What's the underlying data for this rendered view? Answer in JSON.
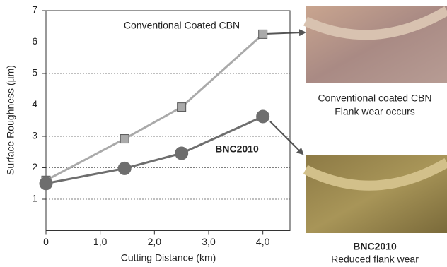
{
  "chart_data": {
    "type": "line",
    "x_label": "Cutting Distance (km)",
    "y_label": "Surface Roughness (µm)",
    "x": [
      0,
      1.45,
      2.5,
      4.0
    ],
    "series": [
      {
        "name": "Conventional Coated CBN",
        "color": "#aaaaaa",
        "marker": "square",
        "values": [
          1.6,
          2.92,
          3.93,
          6.25
        ]
      },
      {
        "name": "BNC2010",
        "color": "#6e6e6e",
        "marker": "circle",
        "values": [
          1.5,
          1.98,
          2.46,
          3.63
        ]
      }
    ],
    "xlim": [
      0,
      4.5
    ],
    "ylim": [
      0,
      7
    ],
    "xticks": [
      0,
      {
        "value": 1,
        "label": "1,0"
      },
      {
        "value": 2,
        "label": "2,0"
      },
      {
        "value": 3,
        "label": "3,0"
      },
      {
        "value": 4,
        "label": "4,0"
      }
    ],
    "yticks": [
      1,
      2,
      3,
      4,
      5,
      6,
      7
    ],
    "grid": true
  },
  "images": [
    {
      "caption": [
        "Conventional coated CBN",
        "Flank wear occurs"
      ]
    },
    {
      "caption": [
        "BNC2010",
        "Reduced flank wear"
      ]
    }
  ]
}
